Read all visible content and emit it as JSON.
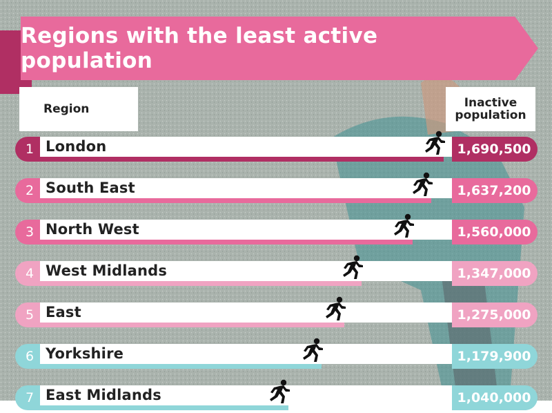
{
  "title": "Regions with the least active population",
  "headers": {
    "region": "Region",
    "population": "Inactive population"
  },
  "colors": {
    "banner": "#e86a9c",
    "banner_fold": "#b02f63",
    "rank_palette": [
      "#b02f63",
      "#e86a9c",
      "#e86a9c",
      "#f0a3c2",
      "#f0a3c2",
      "#8fd6d9",
      "#8fd6d9"
    ]
  },
  "icons": {
    "runner": "running-person-icon"
  },
  "chart_data": {
    "type": "bar",
    "title": "Regions with the least active population",
    "xlabel": "Region",
    "ylabel": "Inactive population",
    "categories": [
      "London",
      "South East",
      "North West",
      "West Midlands",
      "East",
      "Yorkshire",
      "East Midlands"
    ],
    "ranks": [
      "1",
      "2",
      "3",
      "4",
      "5",
      "6",
      "7"
    ],
    "values": [
      1690500,
      1637200,
      1560000,
      1347000,
      1275000,
      1179900,
      1040000
    ],
    "value_labels": [
      "1,690,500",
      "1,637,200",
      "1,560,000",
      "1,347,000",
      "1,275,000",
      "1,179,900",
      "1,040,000"
    ],
    "ylim": [
      0,
      1690500
    ]
  }
}
